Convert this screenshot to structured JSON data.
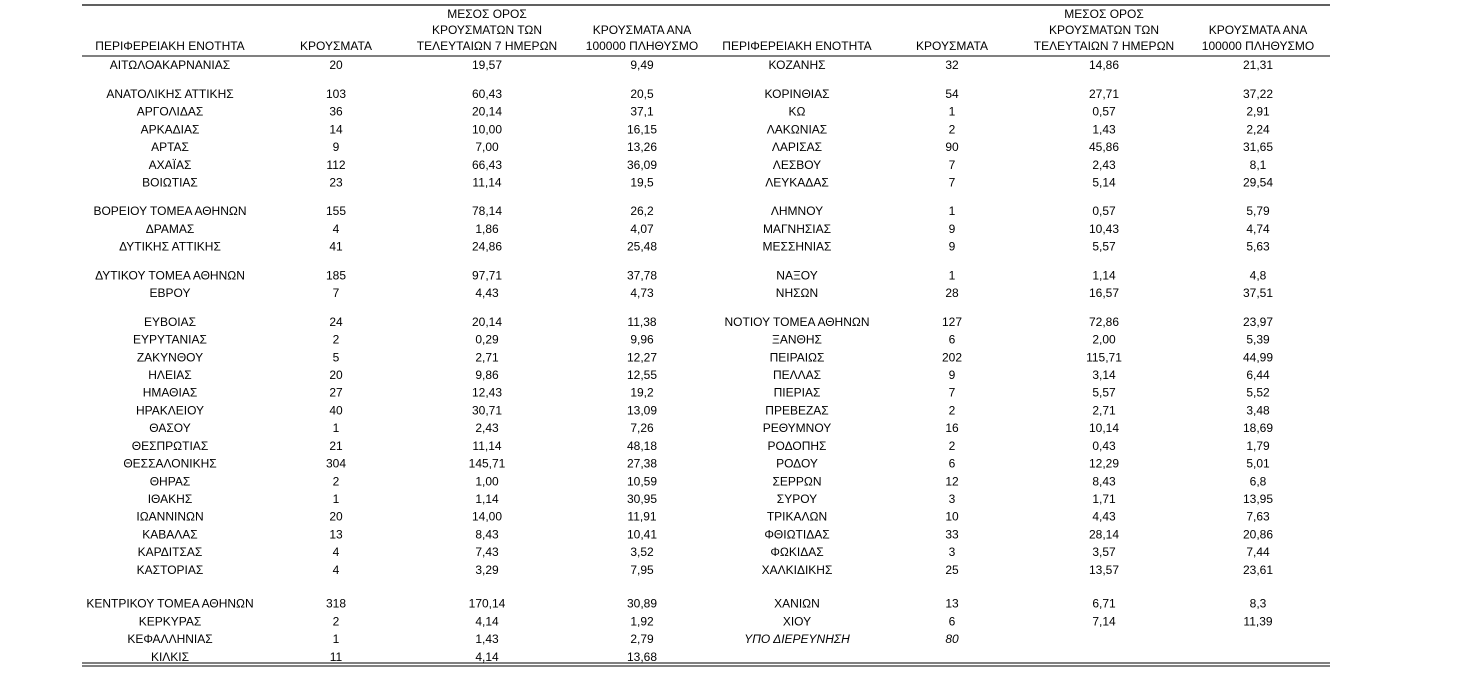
{
  "tables": [
    {
      "header": [
        [
          "ΠΕΡΙΦΕΡΕΙΑΚΗ ΕΝΟΤΗΤΑ"
        ],
        [
          "ΚΡΟΥΣΜΑΤΑ"
        ],
        [
          "ΜΕΣΟΣ ΟΡΟΣ",
          "ΚΡΟΥΣΜΑΤΩΝ ΤΩΝ",
          "ΤΕΛΕΥΤΑΙΩΝ 7 ΗΜΕΡΩΝ"
        ],
        [
          "ΚΡΟΥΣΜΑΤΑ ΑΝΑ",
          "100000 ΠΛΗΘΥΣΜΟ"
        ]
      ],
      "rows": [
        [
          "ΑΙΤΩΛΟΑΚΑΡΝΑΝΙΑΣ",
          "20",
          "19,57",
          "9,49"
        ],
        [
          "ΑΝΑΤΟΛΙΚΗΣ ΑΤΤΙΚΗΣ",
          "103",
          "60,43",
          "20,5"
        ],
        [
          "ΑΡΓΟΛΙΔΑΣ",
          "36",
          "20,14",
          "37,1"
        ],
        [
          "ΑΡΚΑΔΙΑΣ",
          "14",
          "10,00",
          "16,15"
        ],
        [
          "ΑΡΤΑΣ",
          "9",
          "7,00",
          "13,26"
        ],
        [
          "ΑΧΑΪΑΣ",
          "112",
          "66,43",
          "36,09"
        ],
        [
          "ΒΟΙΩΤΙΑΣ",
          "23",
          "11,14",
          "19,5"
        ],
        [
          "ΒΟΡΕΙΟΥ ΤΟΜΕΑ ΑΘΗΝΩΝ",
          "155",
          "78,14",
          "26,2"
        ],
        [
          "ΔΡΑΜΑΣ",
          "4",
          "1,86",
          "4,07"
        ],
        [
          "ΔΥΤΙΚΗΣ ΑΤΤΙΚΗΣ",
          "41",
          "24,86",
          "25,48"
        ],
        [
          "ΔΥΤΙΚΟΥ ΤΟΜΕΑ ΑΘΗΝΩΝ",
          "185",
          "97,71",
          "37,78"
        ],
        [
          "ΕΒΡΟΥ",
          "7",
          "4,43",
          "4,73"
        ],
        [
          "ΕΥΒΟΙΑΣ",
          "24",
          "20,14",
          "11,38"
        ],
        [
          "ΕΥΡΥΤΑΝΙΑΣ",
          "2",
          "0,29",
          "9,96"
        ],
        [
          "ΖΑΚΥΝΘΟΥ",
          "5",
          "2,71",
          "12,27"
        ],
        [
          "ΗΛΕΙΑΣ",
          "20",
          "9,86",
          "12,55"
        ],
        [
          "ΗΜΑΘΙΑΣ",
          "27",
          "12,43",
          "19,2"
        ],
        [
          "ΗΡΑΚΛΕΙΟΥ",
          "40",
          "30,71",
          "13,09"
        ],
        [
          "ΘΑΣΟΥ",
          "1",
          "2,43",
          "7,26"
        ],
        [
          "ΘΕΣΠΡΩΤΙΑΣ",
          "21",
          "11,14",
          "48,18"
        ],
        [
          "ΘΕΣΣΑΛΟΝΙΚΗΣ",
          "304",
          "145,71",
          "27,38"
        ],
        [
          "ΘΗΡΑΣ",
          "2",
          "1,00",
          "10,59"
        ],
        [
          "ΙΘΑΚΗΣ",
          "1",
          "1,14",
          "30,95"
        ],
        [
          "ΙΩΑΝΝΙΝΩΝ",
          "20",
          "14,00",
          "11,91"
        ],
        [
          "ΚΑΒΑΛΑΣ",
          "13",
          "8,43",
          "10,41"
        ],
        [
          "ΚΑΡΔΙΤΣΑΣ",
          "4",
          "7,43",
          "3,52"
        ],
        [
          "ΚΑΣΤΟΡΙΑΣ",
          "4",
          "3,29",
          "7,95"
        ],
        [
          "ΚΕΝΤΡΙΚΟΥ ΤΟΜΕΑ ΑΘΗΝΩΝ",
          "318",
          "170,14",
          "30,89"
        ],
        [
          "ΚΕΡΚΥΡΑΣ",
          "2",
          "4,14",
          "1,92"
        ],
        [
          "ΚΕΦΑΛΛΗΝΙΑΣ",
          "1",
          "1,43",
          "2,79"
        ],
        [
          "ΚΙΛΚΙΣ",
          "11",
          "4,14",
          "13,68"
        ]
      ]
    },
    {
      "header": [
        [
          "ΠΕΡΙΦΕΡΕΙΑΚΗ ΕΝΟΤΗΤΑ"
        ],
        [
          "ΚΡΟΥΣΜΑΤΑ"
        ],
        [
          "ΜΕΣΟΣ ΟΡΟΣ",
          "ΚΡΟΥΣΜΑΤΩΝ ΤΩΝ",
          "ΤΕΛΕΥΤΑΙΩΝ 7 ΗΜΕΡΩΝ"
        ],
        [
          "ΚΡΟΥΣΜΑΤΑ ΑΝΑ",
          "100000 ΠΛΗΘΥΣΜΟ"
        ]
      ],
      "rows": [
        [
          "ΚΟΖΑΝΗΣ",
          "32",
          "14,86",
          "21,31"
        ],
        [
          "ΚΟΡΙΝΘΙΑΣ",
          "54",
          "27,71",
          "37,22"
        ],
        [
          "ΚΩ",
          "1",
          "0,57",
          "2,91"
        ],
        [
          "ΛΑΚΩΝΙΑΣ",
          "2",
          "1,43",
          "2,24"
        ],
        [
          "ΛΑΡΙΣΑΣ",
          "90",
          "45,86",
          "31,65"
        ],
        [
          "ΛΕΣΒΟΥ",
          "7",
          "2,43",
          "8,1"
        ],
        [
          "ΛΕΥΚΑΔΑΣ",
          "7",
          "5,14",
          "29,54"
        ],
        [
          "ΛΗΜΝΟΥ",
          "1",
          "0,57",
          "5,79"
        ],
        [
          "ΜΑΓΝΗΣΙΑΣ",
          "9",
          "10,43",
          "4,74"
        ],
        [
          "ΜΕΣΣΗΝΙΑΣ",
          "9",
          "5,57",
          "5,63"
        ],
        [
          "ΝΑΞΟΥ",
          "1",
          "1,14",
          "4,8"
        ],
        [
          "ΝΗΣΩΝ",
          "28",
          "16,57",
          "37,51"
        ],
        [
          "ΝΟΤΙΟΥ ΤΟΜΕΑ ΑΘΗΝΩΝ",
          "127",
          "72,86",
          "23,97"
        ],
        [
          "ΞΑΝΘΗΣ",
          "6",
          "2,00",
          "5,39"
        ],
        [
          "ΠΕΙΡΑΙΩΣ",
          "202",
          "115,71",
          "44,99"
        ],
        [
          "ΠΕΛΛΑΣ",
          "9",
          "3,14",
          "6,44"
        ],
        [
          "ΠΙΕΡΙΑΣ",
          "7",
          "5,57",
          "5,52"
        ],
        [
          "ΠΡΕΒΕΖΑΣ",
          "2",
          "2,71",
          "3,48"
        ],
        [
          "ΡΕΘΥΜΝΟΥ",
          "16",
          "10,14",
          "18,69"
        ],
        [
          "ΡΟΔΟΠΗΣ",
          "2",
          "0,43",
          "1,79"
        ],
        [
          "ΡΟΔΟΥ",
          "6",
          "12,29",
          "5,01"
        ],
        [
          "ΣΕΡΡΩΝ",
          "12",
          "8,43",
          "6,8"
        ],
        [
          "ΣΥΡΟΥ",
          "3",
          "1,71",
          "13,95"
        ],
        [
          "ΤΡΙΚΑΛΩΝ",
          "10",
          "4,43",
          "7,63"
        ],
        [
          "ΦΘΙΩΤΙΔΑΣ",
          "33",
          "28,14",
          "20,86"
        ],
        [
          "ΦΩΚΙΔΑΣ",
          "3",
          "3,57",
          "7,44"
        ],
        [
          "ΧΑΛΚΙΔΙΚΗΣ",
          "25",
          "13,57",
          "23,61"
        ],
        [
          "ΧΑΝΙΩΝ",
          "13",
          "6,71",
          "8,3"
        ],
        [
          "ΧΙΟΥ",
          "6",
          "7,14",
          "11,39"
        ],
        [
          "ΥΠΟ ΔΙΕΡΕΥΝΗΣΗ",
          "80"
        ]
      ]
    }
  ]
}
